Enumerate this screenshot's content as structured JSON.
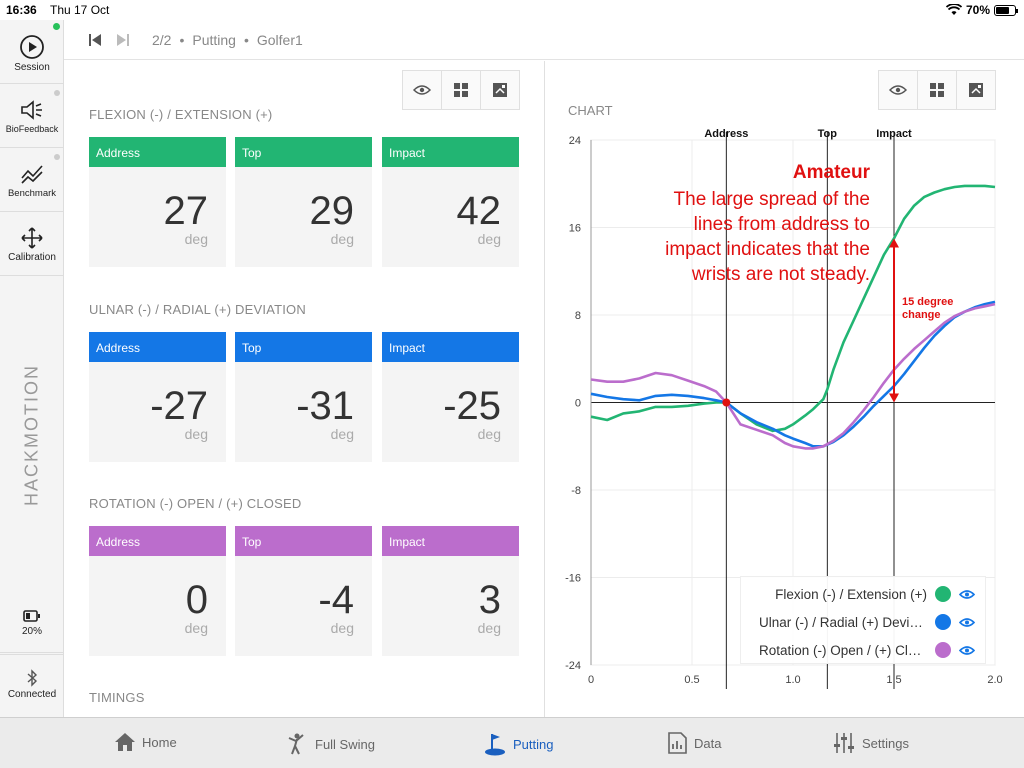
{
  "status": {
    "time": "16:36",
    "date": "Thu 17 Oct",
    "battery": "70%"
  },
  "sidebar": {
    "items": [
      {
        "label": "Session",
        "icon": "play-circle-icon"
      },
      {
        "label": "BioFeedback",
        "icon": "speaker-icon"
      },
      {
        "label": "Benchmark",
        "icon": "trend-icon"
      },
      {
        "label": "Calibration",
        "icon": "move-arrows-icon"
      }
    ],
    "brand": "HACKMOTION",
    "sensor_battery": "20%",
    "connection": "Connected"
  },
  "header": {
    "counter": "2/2",
    "mode": "Putting",
    "player": "Golfer1",
    "separator": "•"
  },
  "sections": [
    {
      "title": "FLEXION (-) / EXTENSION (+)",
      "color": "#22b573",
      "cards": [
        {
          "label": "Address",
          "value": "27",
          "unit": "deg"
        },
        {
          "label": "Top",
          "value": "29",
          "unit": "deg"
        },
        {
          "label": "Impact",
          "value": "42",
          "unit": "deg"
        }
      ]
    },
    {
      "title": "ULNAR (-) / RADIAL (+) DEVIATION",
      "color": "#1477e6",
      "cards": [
        {
          "label": "Address",
          "value": "-27",
          "unit": "deg"
        },
        {
          "label": "Top",
          "value": "-31",
          "unit": "deg"
        },
        {
          "label": "Impact",
          "value": "-25",
          "unit": "deg"
        }
      ]
    },
    {
      "title": "ROTATION (-) OPEN / (+) CLOSED",
      "color": "#bb6dcc",
      "cards": [
        {
          "label": "Address",
          "value": "0",
          "unit": "deg"
        },
        {
          "label": "Top",
          "value": "-4",
          "unit": "deg"
        },
        {
          "label": "Impact",
          "value": "3",
          "unit": "deg"
        }
      ]
    }
  ],
  "timings_title": "TIMINGS",
  "chart_title": "CHART",
  "chart_data": {
    "type": "line",
    "xlim": [
      0,
      2.0
    ],
    "ylim": [
      -24,
      24
    ],
    "x_ticks": [
      "0",
      "0.5",
      "1.0",
      "1.5",
      "2.0"
    ],
    "y_ticks": [
      "24",
      "16",
      "8",
      "0",
      "-8",
      "-16",
      "-24"
    ],
    "markers": [
      {
        "label": "Address",
        "x": 0.67
      },
      {
        "label": "Top",
        "x": 1.17
      },
      {
        "label": "Impact",
        "x": 1.5
      }
    ],
    "series": [
      {
        "name": "Flexion (-) / Extension (+)",
        "color": "#22b573",
        "x": [
          0,
          0.08,
          0.16,
          0.24,
          0.32,
          0.4,
          0.48,
          0.56,
          0.62,
          0.67,
          0.74,
          0.82,
          0.9,
          0.96,
          1.0,
          1.06,
          1.1,
          1.15,
          1.17,
          1.2,
          1.25,
          1.3,
          1.35,
          1.4,
          1.45,
          1.5,
          1.55,
          1.6,
          1.65,
          1.7,
          1.75,
          1.8,
          1.85,
          1.9,
          1.95,
          2.0
        ],
        "y": [
          -1.3,
          -1.6,
          -1.0,
          -0.8,
          -0.4,
          -0.4,
          -0.3,
          -0.1,
          0.0,
          0.0,
          -1.0,
          -2.0,
          -2.6,
          -2.4,
          -2.0,
          -1.2,
          -0.6,
          0.3,
          1.2,
          3.0,
          5.5,
          7.5,
          9.5,
          11.5,
          13.5,
          15.0,
          16.8,
          18.0,
          18.8,
          19.2,
          19.5,
          19.7,
          19.8,
          19.8,
          19.8,
          19.7
        ]
      },
      {
        "name": "Ulnar (-) / Radial (+) Deviation",
        "color": "#1477e6",
        "x": [
          0,
          0.08,
          0.16,
          0.24,
          0.32,
          0.4,
          0.48,
          0.56,
          0.62,
          0.67,
          0.74,
          0.82,
          0.9,
          0.96,
          1.0,
          1.06,
          1.1,
          1.15,
          1.2,
          1.25,
          1.3,
          1.35,
          1.4,
          1.45,
          1.5,
          1.55,
          1.6,
          1.65,
          1.7,
          1.75,
          1.8,
          1.85,
          1.9,
          1.95,
          2.0
        ],
        "y": [
          0.8,
          0.5,
          0.3,
          0.2,
          0.6,
          0.7,
          0.6,
          0.4,
          0.2,
          0.0,
          -1.0,
          -1.8,
          -2.4,
          -3.0,
          -3.3,
          -3.7,
          -4.0,
          -4.0,
          -3.6,
          -3.0,
          -2.2,
          -1.3,
          -0.3,
          0.6,
          1.5,
          2.6,
          3.8,
          5.0,
          6.1,
          7.0,
          7.8,
          8.3,
          8.7,
          9.0,
          9.2
        ]
      },
      {
        "name": "Rotation (-) Open / (+) Closed",
        "color": "#bb6dcc",
        "x": [
          0,
          0.08,
          0.16,
          0.24,
          0.32,
          0.4,
          0.48,
          0.56,
          0.62,
          0.67,
          0.74,
          0.82,
          0.9,
          0.96,
          1.0,
          1.06,
          1.1,
          1.15,
          1.2,
          1.25,
          1.3,
          1.35,
          1.4,
          1.45,
          1.5,
          1.55,
          1.6,
          1.65,
          1.7,
          1.75,
          1.8,
          1.85,
          1.9,
          1.95,
          2.0
        ],
        "y": [
          2.1,
          1.9,
          1.9,
          2.2,
          2.7,
          2.5,
          2.0,
          1.5,
          1.0,
          0.0,
          -2.0,
          -2.5,
          -3.0,
          -3.7,
          -4.0,
          -4.2,
          -4.2,
          -4.0,
          -3.5,
          -2.8,
          -1.8,
          -0.7,
          0.5,
          1.8,
          3.0,
          4.0,
          4.9,
          5.7,
          6.5,
          7.3,
          7.9,
          8.3,
          8.6,
          8.8,
          9.0
        ]
      }
    ],
    "annotation": {
      "title": "Amateur",
      "lines": [
        "The large spread of the",
        "lines from address to",
        "impact indicates that the",
        "wrists are not steady."
      ],
      "arrow_label": [
        "15 degree",
        "change"
      ],
      "arrow_x": 1.5,
      "arrow_y_from": 0,
      "arrow_y_to": 15
    }
  },
  "tabs": [
    {
      "label": "Home",
      "icon": "home-icon"
    },
    {
      "label": "Full Swing",
      "icon": "golfer-icon"
    },
    {
      "label": "Putting",
      "icon": "putting-icon",
      "active": true
    },
    {
      "label": "Data",
      "icon": "data-chart-icon"
    },
    {
      "label": "Settings",
      "icon": "sliders-icon"
    }
  ],
  "colors": {
    "accent": "#1a5fbf",
    "annotation": "#e01010",
    "flexion": "#22b573",
    "ulnar": "#1477e6",
    "rotation": "#bb6dcc"
  }
}
